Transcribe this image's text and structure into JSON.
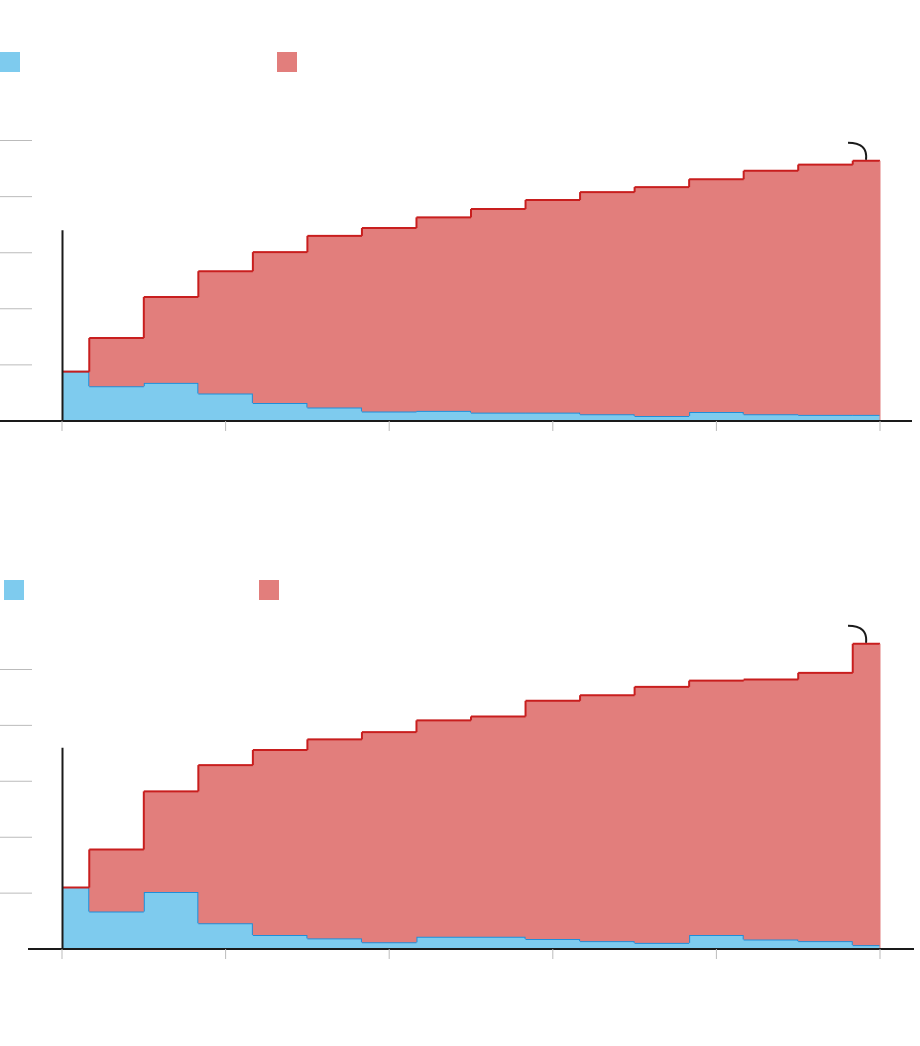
{
  "colors": {
    "series_a_fill": "#7ecbee",
    "series_a_line": "#1e8ed9",
    "series_b_fill": "#e27e7c",
    "series_b_line": "#c81e1e",
    "axis": "#1a1a1a",
    "grid": "#bbbbbb"
  },
  "chart_data": [
    {
      "type": "area",
      "step": true,
      "stacked": true,
      "title": "",
      "xlabel": "",
      "ylabel": "",
      "x_edges": [
        0,
        0.5,
        1.5,
        2.5,
        3.5,
        4.5,
        5.5,
        6.5,
        7.5,
        8.5,
        9.5,
        10.5,
        11.5,
        12.5,
        13.5,
        14.5,
        15.0
      ],
      "xlim": [
        0,
        15
      ],
      "x_ticks": [
        0,
        3,
        6,
        9,
        12,
        15
      ],
      "ylim": [
        0,
        5
      ],
      "y_ticks": [
        1,
        2,
        3,
        4,
        5
      ],
      "reference_line": {
        "x": 0,
        "y_top": 3.4
      },
      "end_annotation": "curved-arrow",
      "legend": {
        "placement": "top",
        "entries": [
          {
            "swatch": "series_a"
          },
          {
            "swatch": "series_b"
          }
        ]
      },
      "series": [
        {
          "swatch": "series_a",
          "values": [
            0.88,
            0.62,
            0.68,
            0.49,
            0.32,
            0.24,
            0.17,
            0.18,
            0.15,
            0.15,
            0.12,
            0.09,
            0.16,
            0.12,
            0.11,
            0.11
          ]
        },
        {
          "swatch": "series_b",
          "values": [
            0.0,
            0.86,
            1.53,
            2.18,
            2.69,
            3.06,
            3.27,
            3.45,
            3.63,
            3.79,
            3.96,
            4.08,
            4.15,
            4.34,
            4.46,
            4.53
          ]
        }
      ]
    },
    {
      "type": "area",
      "step": true,
      "stacked": true,
      "title": "",
      "xlabel": "",
      "ylabel": "",
      "x_edges": [
        0,
        0.5,
        1.5,
        2.5,
        3.5,
        4.5,
        5.5,
        6.5,
        7.5,
        8.5,
        9.5,
        10.5,
        11.5,
        12.5,
        13.5,
        14.5,
        15.0
      ],
      "xlim": [
        0,
        15
      ],
      "x_ticks": [
        0,
        3,
        6,
        9,
        12,
        15
      ],
      "ylim": [
        0,
        5
      ],
      "y_ticks": [
        1,
        2,
        3,
        4,
        5
      ],
      "reference_line": {
        "x": 0,
        "y_top": 3.6
      },
      "end_annotation": "curved-arrow",
      "legend": {
        "placement": "top",
        "entries": [
          {
            "swatch": "series_a"
          },
          {
            "swatch": "series_b"
          }
        ]
      },
      "series": [
        {
          "swatch": "series_a",
          "values": [
            1.1,
            0.67,
            1.02,
            0.46,
            0.25,
            0.19,
            0.12,
            0.22,
            0.22,
            0.18,
            0.14,
            0.11,
            0.25,
            0.17,
            0.14,
            0.07
          ]
        },
        {
          "swatch": "series_b",
          "values": [
            0.0,
            1.11,
            1.8,
            2.83,
            3.31,
            3.56,
            3.76,
            3.87,
            3.94,
            4.26,
            4.4,
            4.58,
            4.55,
            4.65,
            4.8,
            5.39
          ]
        }
      ]
    }
  ]
}
